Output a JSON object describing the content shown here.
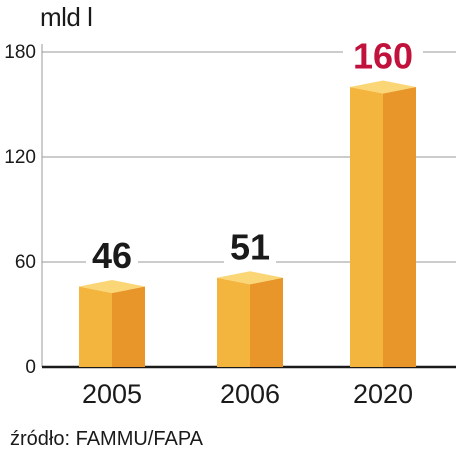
{
  "chart_data": {
    "type": "bar",
    "unit_label": "mld l",
    "categories": [
      "2005",
      "2006",
      "2020"
    ],
    "values": [
      46,
      51,
      160
    ],
    "value_labels": [
      "46",
      "51",
      "160"
    ],
    "highlight_index": 2,
    "ylim": [
      0,
      180
    ],
    "yticks": [
      0,
      60,
      120,
      180
    ],
    "ytick_labels": [
      "0",
      "60",
      "120",
      "180"
    ],
    "grid": true,
    "source": "źródło: FAMMU/FAPA",
    "colors": {
      "bar_front": "#f4b53f",
      "bar_side": "#e8962a",
      "bar_top": "#fbd676",
      "grid": "#9a9a9a",
      "axis": "#1a1a1a",
      "label": "#1a1a1a",
      "highlight_label": "#c0123c"
    }
  }
}
